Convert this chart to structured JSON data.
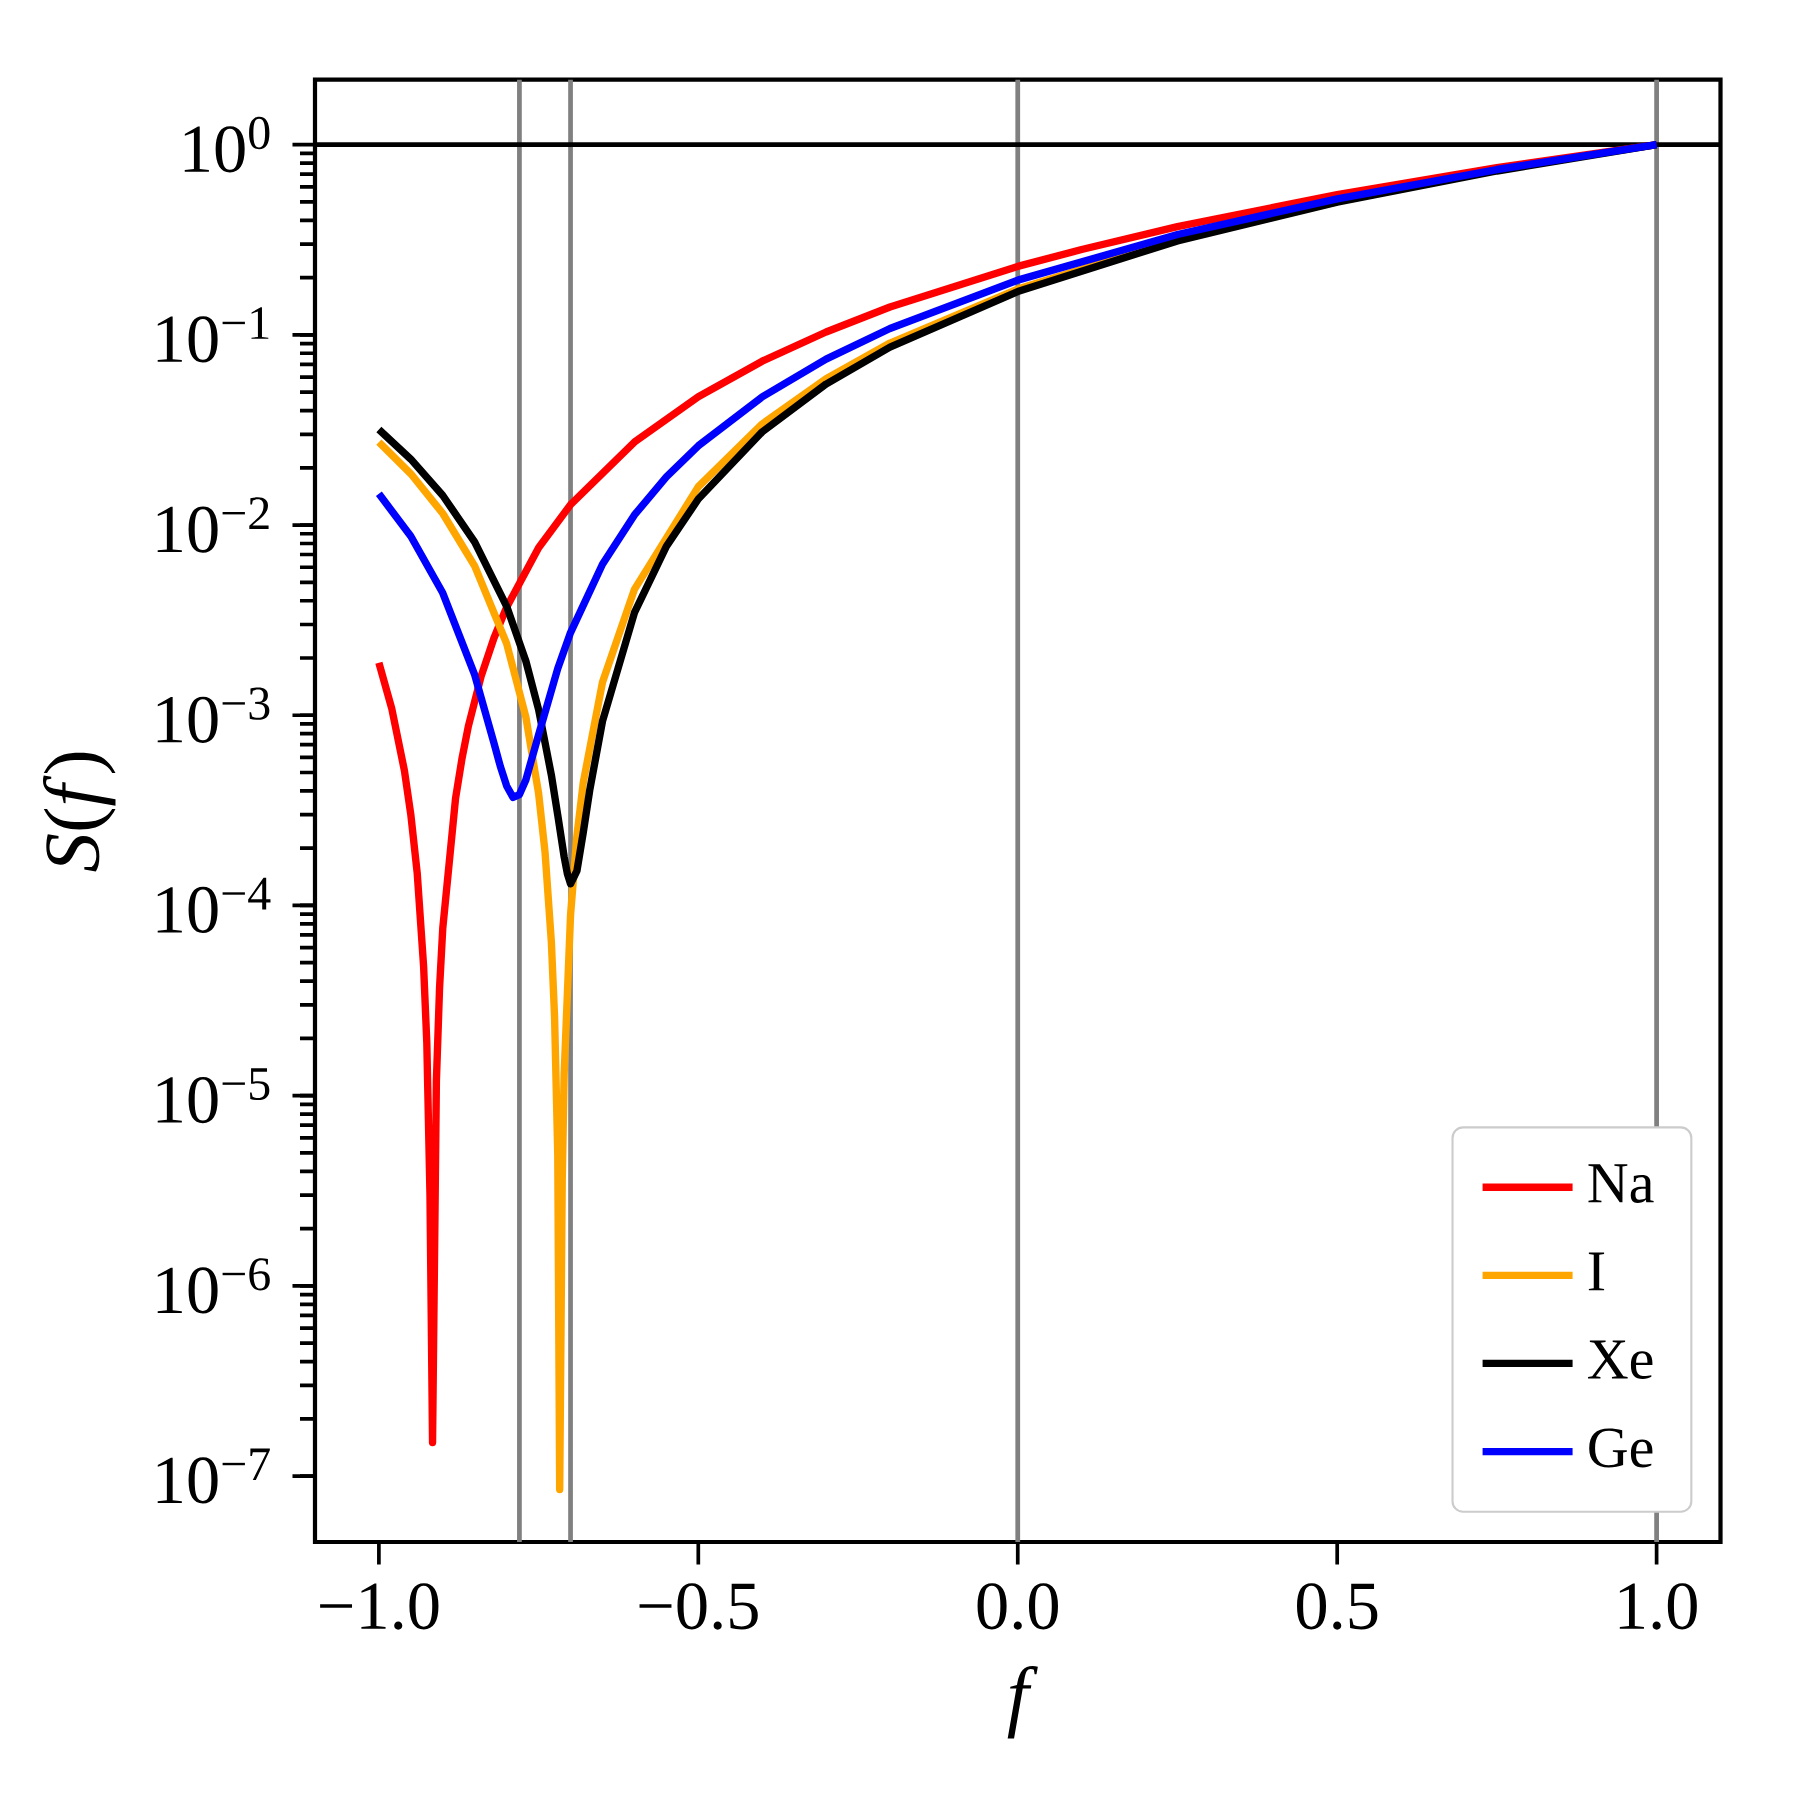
{
  "chart_data": {
    "type": "line",
    "xlabel": "f",
    "ylabel": "*S*(*f*)",
    "log": "y",
    "legend": "bottom right",
    "line_style": "solid",
    "xlim": [
      -1.1,
      1.1
    ],
    "ylim": [
      4.5e-08,
      2.2
    ],
    "xticks": [
      {
        "value": -1.0,
        "label": "−1.0"
      },
      {
        "value": -0.5,
        "label": "−0.5"
      },
      {
        "value": 0.0,
        "label": "0.0"
      },
      {
        "value": 0.5,
        "label": "0.5"
      },
      {
        "value": 1.0,
        "label": "1.0"
      }
    ],
    "yticks": [
      {
        "value": 1e-07,
        "label": "10$^{−7}$"
      },
      {
        "value": 1e-06,
        "label": "10$^{−6}$"
      },
      {
        "value": 1e-05,
        "label": "10$^{−5}$"
      },
      {
        "value": 0.0001,
        "label": "10$^{−4}$"
      },
      {
        "value": 0.001,
        "label": "10$^{−3}$"
      },
      {
        "value": 0.01,
        "label": "10$^{−2}$"
      },
      {
        "value": 0.1,
        "label": "10$^{−1}$"
      },
      {
        "value": 1,
        "label": "10$^{0}$"
      }
    ],
    "ref_lines": [
      {
        "axis": "x",
        "value": -0.78,
        "color": "#808080"
      },
      {
        "axis": "x",
        "value": -0.7,
        "color": "#808080"
      },
      {
        "axis": "x",
        "value": 0.0,
        "color": "#808080"
      },
      {
        "axis": "x",
        "value": 1.0,
        "color": "#808080"
      },
      {
        "axis": "y",
        "value": 1,
        "color": "#000000"
      }
    ],
    "series": [
      {
        "name": "Na",
        "color": "#ff0000",
        "x": [
          -1,
          -0.98,
          -0.96,
          -0.95,
          -0.94,
          -0.93,
          -0.925,
          -0.92,
          -0.916,
          -0.91,
          -0.905,
          -0.9,
          -0.88,
          -0.87,
          -0.86,
          -0.84,
          -0.82,
          -0.8,
          -0.75,
          -0.7,
          -0.6,
          -0.5,
          -0.4,
          -0.3,
          -0.2,
          0,
          0.1,
          0.25,
          0.5,
          0.75,
          1
        ],
        "values": [
          0.00189,
          0.00109,
          0.000511,
          0.0003,
          0.000148,
          4.8e-05,
          1.9e-05,
          3e-06,
          1.5e-07,
          1.2e-05,
          3.7e-05,
          7.6e-05,
          0.000366,
          0.00059,
          0.000874,
          0.0016,
          0.00254,
          0.0037,
          0.0076,
          0.0128,
          0.0273,
          0.0473,
          0.0727,
          0.1035,
          0.14,
          0.229,
          0.281,
          0.371,
          0.546,
          0.756,
          1
        ]
      },
      {
        "name": "I",
        "color": "#ffa500",
        "x": [
          -1,
          -0.95,
          -0.9,
          -0.85,
          -0.8,
          -0.77,
          -0.75,
          -0.74,
          -0.73,
          -0.725,
          -0.72,
          -0.717,
          -0.713,
          -0.71,
          -0.7,
          -0.69,
          -0.68,
          -0.65,
          -0.6,
          -0.5,
          -0.4,
          -0.3,
          -0.2,
          0,
          0.25,
          0.5
        ],
        "values": [
          0.0273,
          0.0186,
          0.0115,
          0.00608,
          0.00238,
          0.00098,
          0.000388,
          0.000192,
          6.4e-05,
          2.6e-05,
          4.9e-06,
          8.5e-08,
          3.6e-06,
          1.3e-05,
          8.9e-05,
          0.000233,
          0.000445,
          0.00149,
          0.00459,
          0.0159,
          0.034,
          0.0588,
          0.0905,
          0.174,
          0.317,
          0.502
        ]
      },
      {
        "name": "Xe",
        "color": "#000000",
        "x": [
          -1,
          -0.95,
          -0.9,
          -0.85,
          -0.8,
          -0.77,
          -0.75,
          -0.73,
          -0.72,
          -0.71,
          -0.705,
          -0.7,
          -0.69,
          -0.68,
          -0.67,
          -0.65,
          -0.6,
          -0.55,
          -0.5,
          -0.4,
          -0.3,
          -0.2,
          0,
          0.25,
          0.5,
          0.75,
          1
        ],
        "values": [
          0.0318,
          0.0222,
          0.0143,
          0.00814,
          0.00374,
          0.00193,
          0.00107,
          0.000484,
          0.000298,
          0.00018,
          0.000147,
          0.00013,
          0.000152,
          0.000243,
          0.000403,
          0.00093,
          0.00346,
          0.00773,
          0.0137,
          0.0309,
          0.0551,
          0.0862,
          0.169,
          0.312,
          0.498,
          0.727,
          1
        ]
      },
      {
        "name": "Ge",
        "color": "#0000ff",
        "x": [
          -1,
          -0.95,
          -0.9,
          -0.85,
          -0.82,
          -0.81,
          -0.8,
          -0.79,
          -0.78,
          -0.77,
          -0.75,
          -0.72,
          -0.7,
          -0.65,
          -0.6,
          -0.55,
          -0.5,
          -0.4,
          -0.3,
          -0.2,
          0,
          0.25,
          0.5,
          0.75,
          1
        ],
        "values": [
          0.0146,
          0.00873,
          0.00439,
          0.00163,
          0.000717,
          0.00054,
          0.000425,
          0.00037,
          0.000383,
          0.000457,
          0.000791,
          0.00176,
          0.00272,
          0.00622,
          0.0113,
          0.0179,
          0.0261,
          0.0472,
          0.0746,
          0.108,
          0.194,
          0.337,
          0.519,
          0.74,
          1
        ]
      }
    ]
  }
}
